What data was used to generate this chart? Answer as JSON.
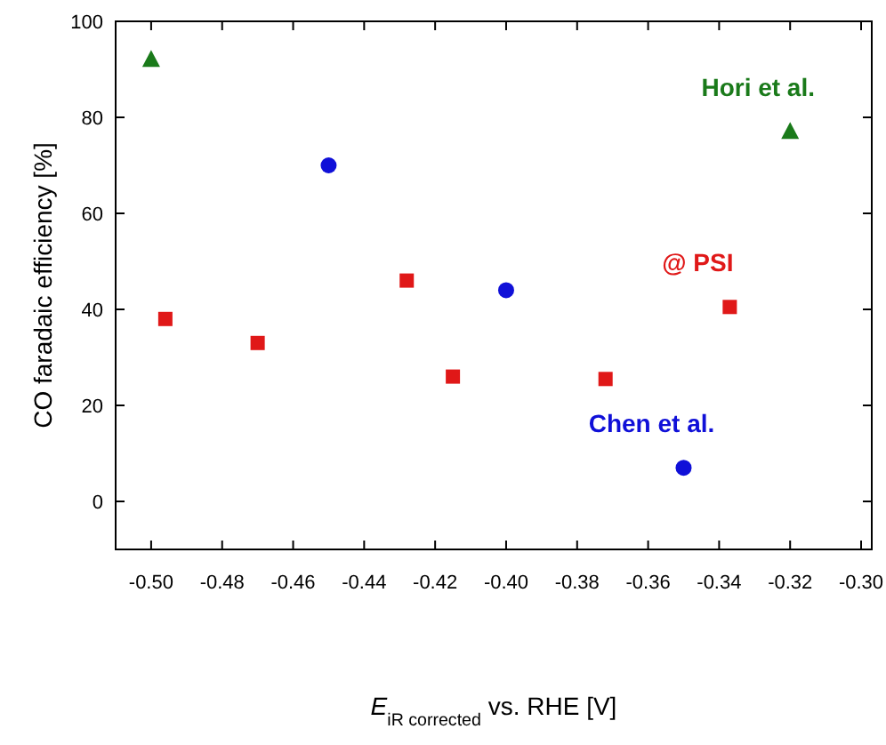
{
  "chart_data": {
    "type": "scatter",
    "xlabel": "E$_{iR corrected}$ vs. RHE [V]",
    "ylabel": "CO faradaic efficiency [%]",
    "xlim": [
      -0.51,
      -0.297
    ],
    "ylim": [
      -10,
      100
    ],
    "xticks": [
      {
        "value": -0.5,
        "label": "-0.50"
      },
      {
        "value": -0.48,
        "label": "-0.48"
      },
      {
        "value": -0.46,
        "label": "-0.46"
      },
      {
        "value": -0.44,
        "label": "-0.44"
      },
      {
        "value": -0.42,
        "label": "-0.42"
      },
      {
        "value": -0.4,
        "label": "-0.40"
      },
      {
        "value": -0.38,
        "label": "-0.38"
      },
      {
        "value": -0.36,
        "label": "-0.36"
      },
      {
        "value": -0.34,
        "label": "-0.34"
      },
      {
        "value": -0.32,
        "label": "-0.32"
      },
      {
        "value": -0.3,
        "label": "-0.30"
      }
    ],
    "yticks": [
      0,
      20,
      40,
      60,
      80,
      100
    ],
    "grid": false,
    "series": [
      {
        "name": "Hori et al.",
        "color": "#1a7a1a",
        "marker": "triangle",
        "x": [
          -0.5,
          -0.32
        ],
        "values": [
          92,
          77
        ]
      },
      {
        "name": "Chen et al.",
        "color": "#1010d8",
        "marker": "circle",
        "x": [
          -0.45,
          -0.4,
          -0.35
        ],
        "values": [
          70,
          44,
          7
        ]
      },
      {
        "name": "@ PSI",
        "color": "#e01818",
        "marker": "square",
        "x": [
          -0.496,
          -0.47,
          -0.428,
          -0.415,
          -0.372,
          -0.337
        ],
        "values": [
          38,
          33,
          46,
          26,
          25.5,
          40.5
        ]
      }
    ]
  }
}
